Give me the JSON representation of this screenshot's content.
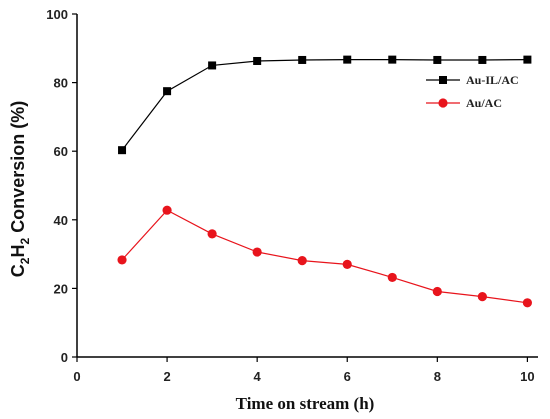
{
  "chart_data": {
    "type": "line",
    "xlabel": "Time on stream (h)",
    "ylabel": {
      "prefix": "C",
      "sub1": "2",
      "mid": "H",
      "sub2": "2",
      "suffix": " Conversion (%)"
    },
    "xlim": [
      0,
      11
    ],
    "ylim": [
      0,
      100
    ],
    "xticks": [
      "0",
      "2",
      "4",
      "6",
      "8",
      "10"
    ],
    "yticks": [
      "0",
      "20",
      "40",
      "60",
      "80",
      "100"
    ],
    "grid": false,
    "legend_position": "top-right",
    "x": [
      1,
      2,
      3,
      4,
      5,
      6,
      7,
      8,
      9,
      10
    ],
    "series": [
      {
        "name": "Au-IL/AC",
        "color": "#000000",
        "marker": "square",
        "values": [
          60.3,
          77.5,
          85.0,
          86.3,
          86.6,
          86.7,
          86.7,
          86.6,
          86.6,
          86.7
        ]
      },
      {
        "name": "Au/AC",
        "color": "#e8141c",
        "marker": "circle",
        "values": [
          28.3,
          42.8,
          35.9,
          30.6,
          28.1,
          27.0,
          23.2,
          19.1,
          17.6,
          15.8
        ]
      }
    ]
  }
}
